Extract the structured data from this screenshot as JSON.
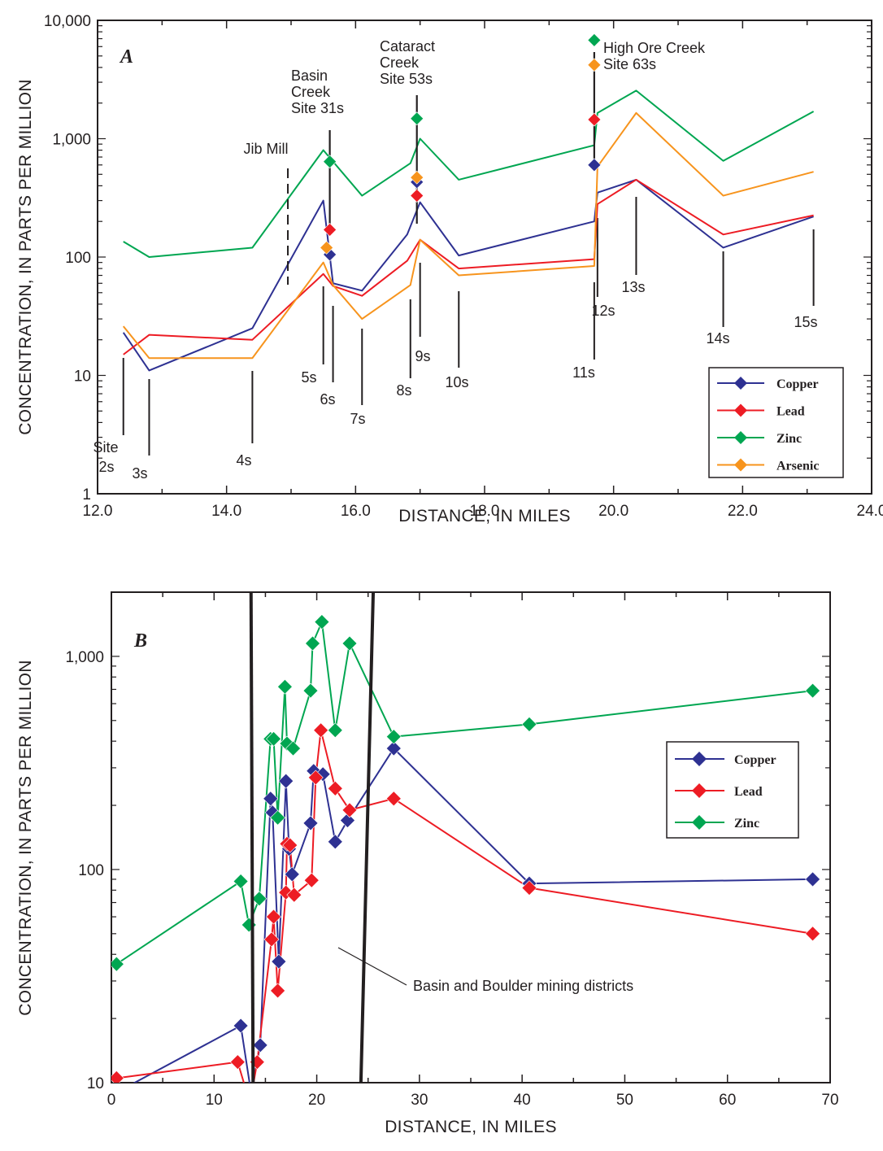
{
  "chart_data": [
    {
      "id": "A",
      "type": "line",
      "panel_label": "A",
      "xlabel": "DISTANCE, IN MILES",
      "ylabel": "CONCENTRATION, IN PARTS PER MILLION",
      "xlim": [
        12.0,
        24.0
      ],
      "ylim": [
        1,
        10000
      ],
      "yscale": "log",
      "xticks": [
        "12.0",
        "14.0",
        "16.0",
        "18.0",
        "20.0",
        "22.0",
        "24.0"
      ],
      "yticks": [
        "1",
        "10",
        "100",
        "1,000",
        "10,000"
      ],
      "legend_position": "bottom-right",
      "series": [
        {
          "name": "Copper",
          "color": "#2e3192",
          "x": [
            12.4,
            12.8,
            14.4,
            15.5,
            15.65,
            16.1,
            16.8,
            17.0,
            17.6,
            19.7,
            19.75,
            20.35,
            21.7,
            23.1
          ],
          "y": [
            23,
            11,
            25,
            300,
            60,
            52,
            155,
            290,
            103,
            200,
            350,
            450,
            120,
            220
          ],
          "markers": {
            "x": [
              15.6,
              16.95,
              19.7
            ],
            "y": [
              105,
              430,
              600
            ]
          }
        },
        {
          "name": "Lead",
          "color": "#ed1c24",
          "x": [
            12.4,
            12.8,
            14.4,
            15.5,
            15.65,
            16.1,
            16.8,
            17.0,
            17.6,
            19.7,
            19.75,
            20.35,
            21.7,
            23.1
          ],
          "y": [
            15,
            22,
            20,
            72,
            57,
            47,
            93,
            140,
            80,
            96,
            280,
            450,
            155,
            225
          ],
          "markers": {
            "x": [
              15.6,
              16.95,
              19.7
            ],
            "y": [
              170,
              330,
              1450
            ]
          }
        },
        {
          "name": "Zinc",
          "color": "#00a651",
          "x": [
            12.4,
            12.8,
            14.4,
            15.5,
            16.1,
            16.85,
            17.0,
            17.6,
            19.7,
            19.75,
            20.35,
            21.7,
            23.1
          ],
          "y": [
            135,
            100,
            120,
            800,
            330,
            620,
            1000,
            450,
            880,
            1650,
            2550,
            650,
            1700
          ],
          "markers": {
            "x": [
              15.6,
              16.95,
              19.7
            ],
            "y": [
              640,
              1480,
              6800
            ]
          }
        },
        {
          "name": "Arsenic",
          "color": "#f7941d",
          "x": [
            12.4,
            12.8,
            14.4,
            15.5,
            15.65,
            16.1,
            16.85,
            17.0,
            17.6,
            19.7,
            19.75,
            20.35,
            21.7,
            23.1
          ],
          "y": [
            26,
            14,
            14,
            90,
            58,
            30,
            58,
            140,
            70,
            84,
            580,
            1650,
            330,
            525
          ],
          "markers": {
            "x": [
              15.55,
              16.95,
              19.7
            ],
            "y": [
              120,
              470,
              4200
            ]
          }
        }
      ],
      "site_labels": [
        {
          "text": "Site",
          "x": 12.4
        },
        {
          "text": "2s",
          "x": 12.4
        },
        {
          "text": "3s",
          "x": 12.8
        },
        {
          "text": "4s",
          "x": 14.4
        },
        {
          "text": "5s",
          "x": 15.5
        },
        {
          "text": "6s",
          "x": 15.65
        },
        {
          "text": "7s",
          "x": 16.1
        },
        {
          "text": "8s",
          "x": 16.85
        },
        {
          "text": "9s",
          "x": 17.0
        },
        {
          "text": "10s",
          "x": 17.6
        },
        {
          "text": "11s",
          "x": 19.7
        },
        {
          "text": "12s",
          "x": 19.75
        },
        {
          "text": "13s",
          "x": 20.35
        },
        {
          "text": "14s",
          "x": 21.7
        },
        {
          "text": "15s",
          "x": 23.1
        }
      ],
      "annotations": [
        {
          "lines": [
            "Basin",
            "Creek",
            "Site 31s"
          ],
          "x": 15.6
        },
        {
          "lines": [
            "Cataract",
            "Creek",
            "Site 53s"
          ],
          "x": 16.95
        },
        {
          "lines": [
            "High Ore Creek",
            "Site 63s"
          ],
          "x": 19.7
        },
        {
          "lines": [
            "Jib Mill"
          ],
          "x": 14.95
        }
      ]
    },
    {
      "id": "B",
      "type": "line",
      "panel_label": "B",
      "xlabel": "DISTANCE, IN MILES",
      "ylabel": "CONCENTRATION, IN PARTS PER MILLION",
      "xlim": [
        0,
        70
      ],
      "ylim": [
        10,
        2000
      ],
      "yscale": "log",
      "xticks": [
        "0",
        "10",
        "20",
        "30",
        "40",
        "50",
        "60",
        "70"
      ],
      "yticks": [
        "10",
        "100",
        "1,000"
      ],
      "legend_position": "right",
      "series": [
        {
          "name": "Copper",
          "color": "#2e3192",
          "x": [
            0.5,
            12.6,
            13.6,
            14.5,
            15.5,
            15.7,
            16.3,
            17.0,
            17.3,
            17.6,
            19.4,
            19.7,
            20.6,
            21.8,
            23.0,
            27.5,
            40.7,
            68.3
          ],
          "y": [
            9,
            18.5,
            9,
            15,
            215,
            185,
            37,
            260,
            125,
            95,
            165,
            290,
            280,
            135,
            170,
            370,
            86,
            90
          ]
        },
        {
          "name": "Lead",
          "color": "#ed1c24",
          "x": [
            0.5,
            12.3,
            13.5,
            14.2,
            15.6,
            15.8,
            16.2,
            17.0,
            17.1,
            17.4,
            17.8,
            19.5,
            19.9,
            20.4,
            21.8,
            23.2,
            27.5,
            40.7,
            68.3
          ],
          "y": [
            10.5,
            12.5,
            8,
            12.5,
            47,
            60,
            27,
            78,
            132,
            130,
            76,
            89,
            270,
            450,
            240,
            190,
            215,
            82,
            50
          ]
        },
        {
          "name": "Zinc",
          "color": "#00a651",
          "x": [
            0.5,
            12.6,
            13.4,
            14.4,
            15.5,
            15.8,
            16.2,
            16.9,
            17.1,
            17.7,
            19.4,
            19.6,
            20.5,
            21.8,
            23.2,
            27.5,
            40.7,
            68.3
          ],
          "y": [
            36,
            88,
            55,
            73,
            410,
            410,
            175,
            720,
            390,
            370,
            690,
            1150,
            1450,
            450,
            1150,
            420,
            480,
            690
          ]
        }
      ],
      "district_lines": [
        {
          "x_top": 13.6,
          "x_bottom": 13.8
        },
        {
          "x_top": 25.5,
          "x_bottom": 24.3
        }
      ],
      "annotation": {
        "text": "Basin and Boulder mining districts",
        "x": 24.5,
        "y": 16
      }
    }
  ]
}
